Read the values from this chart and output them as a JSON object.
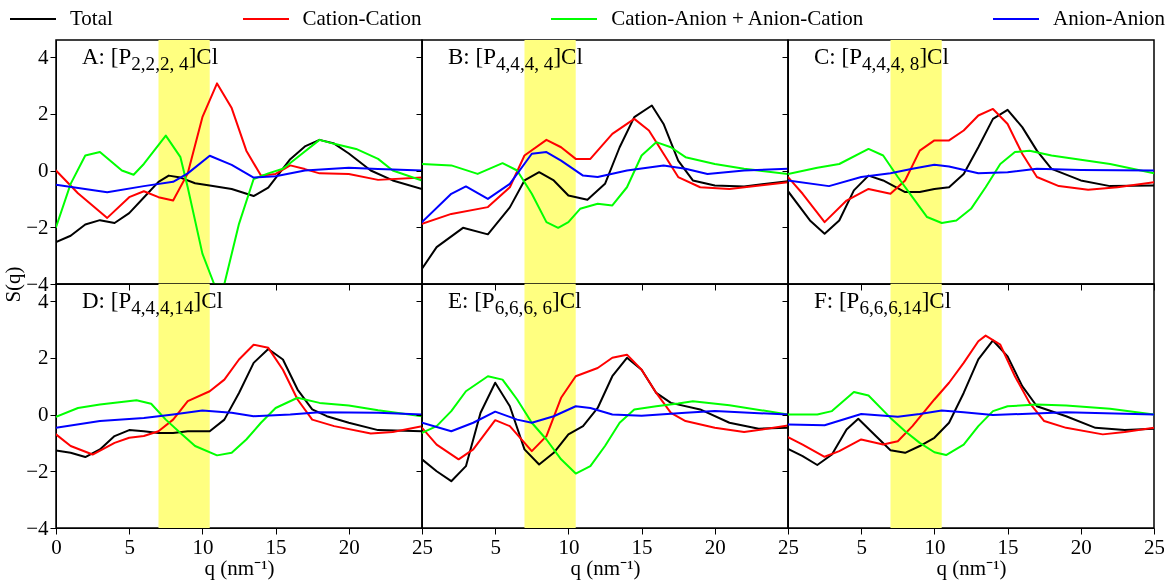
{
  "chart_data": [
    {
      "type": "line",
      "title": "A: [P$_{2,2,2, 4}$]Cl",
      "ylabel": "S(q)",
      "legend": "top",
      "tick_labels": "y",
      "xlim": [
        0,
        25
      ],
      "ylim": [
        -4,
        4.6
      ],
      "xticks": [
        0,
        5,
        10,
        15,
        20,
        25
      ],
      "yticks": [
        -4,
        -2,
        0,
        2,
        4
      ],
      "bands": [
        {
          "axis": "x",
          "from": 7,
          "to": 10.5,
          "color": "#ffff80"
        }
      ],
      "series": [
        {
          "name": "Total",
          "color": "#000000",
          "x": [
            0,
            1,
            2,
            3,
            4,
            5,
            6,
            7,
            7.7,
            8.5,
            9.5,
            10.5,
            12,
            13.5,
            14.5,
            16,
            17,
            18,
            19,
            20,
            21.5,
            23,
            25
          ],
          "values": [
            -2.52,
            -2.3,
            -1.9,
            -1.75,
            -1.85,
            -1.5,
            -0.95,
            -0.4,
            -0.18,
            -0.25,
            -0.45,
            -0.53,
            -0.65,
            -0.9,
            -0.6,
            0.4,
            0.85,
            1.08,
            0.95,
            0.6,
            0,
            -0.35,
            -0.65
          ]
        },
        {
          "name": "Cation-Cation",
          "color": "#ff0000",
          "x": [
            0,
            1.5,
            3.5,
            5,
            6,
            7,
            8,
            9,
            10,
            11,
            12,
            13,
            14,
            15,
            16,
            17,
            18,
            20,
            22,
            25
          ],
          "values": [
            0,
            -0.8,
            -1.67,
            -0.94,
            -0.73,
            -0.94,
            -1.06,
            -0.1,
            1.88,
            3.07,
            2.2,
            0.7,
            -0.18,
            -0.12,
            0.18,
            0.05,
            -0.1,
            -0.12,
            -0.33,
            -0.25
          ]
        },
        {
          "name": "Cation-Anion + Anion-Cation",
          "color": "#00ff00",
          "x": [
            0,
            1,
            2,
            3,
            4.5,
            5.3,
            6,
            7.5,
            8.5,
            9,
            10,
            10.8,
            11.5,
            12.5,
            13.5,
            14.5,
            15.5,
            16.5,
            18,
            19,
            20.5,
            22,
            23,
            25
          ],
          "values": [
            -2,
            -0.47,
            0.53,
            0.65,
            0,
            -0.15,
            0.23,
            1.23,
            0.47,
            -0.6,
            -2.93,
            -4,
            -4,
            -1.88,
            -0.3,
            -0.1,
            0.06,
            0.47,
            1.08,
            0.94,
            0.76,
            0.41,
            0,
            -0.35
          ]
        },
        {
          "name": "Anion-Anion",
          "color": "#0000ff",
          "x": [
            0,
            3.5,
            6,
            8,
            9,
            10.5,
            12,
            13.5,
            15,
            17,
            20,
            22,
            25
          ],
          "values": [
            -0.5,
            -0.77,
            -0.55,
            -0.4,
            -0.1,
            0.52,
            0.2,
            -0.25,
            -0.2,
            0,
            0.1,
            0.05,
            0
          ]
        }
      ]
    },
    {
      "type": "line",
      "title": "B: [P$_{4,4,4, 4}$]Cl",
      "tick_labels": false,
      "xlim": [
        0,
        25
      ],
      "ylim": [
        -4,
        4.6
      ],
      "xticks": [
        0,
        5,
        10,
        15,
        20,
        25
      ],
      "yticks": [
        -4,
        -2,
        0,
        2,
        4
      ],
      "bands": [
        {
          "axis": "x",
          "from": 7,
          "to": 10.5,
          "color": "#ffff80"
        }
      ],
      "series": [
        {
          "name": "Total",
          "color": "#000000",
          "x": [
            0,
            1,
            2.8,
            4.5,
            6,
            7,
            8,
            9,
            10,
            11.3,
            12.5,
            13.5,
            14.5,
            15.7,
            16.5,
            17.5,
            18.5,
            20,
            22,
            25
          ],
          "values": [
            -3.46,
            -2.7,
            -2.02,
            -2.25,
            -1.3,
            -0.35,
            -0.06,
            -0.35,
            -0.88,
            -1.03,
            -0.47,
            0.82,
            1.88,
            2.29,
            1.64,
            0.35,
            -0.35,
            -0.53,
            -0.56,
            -0.38
          ]
        },
        {
          "name": "Cation-Cation",
          "color": "#ff0000",
          "x": [
            0,
            2,
            4.5,
            6,
            7,
            8.5,
            9.5,
            10.5,
            11.5,
            13,
            14.5,
            15.5,
            16.5,
            17.5,
            19,
            21,
            25
          ],
          "values": [
            -1.88,
            -1.53,
            -1.29,
            -0.59,
            0.53,
            1.08,
            0.82,
            0.41,
            0.41,
            1.29,
            1.82,
            1.41,
            0.59,
            -0.23,
            -0.59,
            -0.65,
            -0.41
          ]
        },
        {
          "name": "Cation-Anion + Anion-Cation",
          "color": "#00ff00",
          "x": [
            0,
            2,
            3.8,
            5.5,
            6.5,
            7.5,
            8.5,
            9.3,
            10,
            10.8,
            12,
            13,
            14,
            15,
            16,
            17,
            18,
            20,
            22,
            25
          ],
          "values": [
            0.23,
            0.18,
            -0.12,
            0.26,
            0,
            -0.82,
            -1.82,
            -2.02,
            -1.82,
            -1.35,
            -1.17,
            -1.23,
            -0.59,
            0.53,
            1,
            0.82,
            0.47,
            0.23,
            0.06,
            -0.12
          ]
        },
        {
          "name": "Anion-Anion",
          "color": "#0000ff",
          "x": [
            0,
            2,
            3,
            4.5,
            6,
            7.5,
            8.5,
            9.5,
            11,
            12,
            14,
            16.5,
            18,
            19.5,
            22,
            25
          ],
          "values": [
            -1.82,
            -0.82,
            -0.56,
            -1,
            -0.47,
            0.59,
            0.65,
            0.35,
            -0.18,
            -0.23,
            0,
            0.18,
            0.06,
            -0.12,
            0,
            0.06
          ]
        }
      ]
    },
    {
      "type": "line",
      "title": "C: [P$_{4,4,4, 8}$]Cl",
      "tick_labels": false,
      "xlim": [
        0,
        25
      ],
      "ylim": [
        -4,
        4.6
      ],
      "xticks": [
        0,
        5,
        10,
        15,
        20,
        25
      ],
      "yticks": [
        -4,
        -2,
        0,
        2,
        4
      ],
      "bands": [
        {
          "axis": "x",
          "from": 7,
          "to": 10.5,
          "color": "#ffff80"
        }
      ],
      "series": [
        {
          "name": "Total",
          "color": "#000000",
          "x": [
            0,
            1.5,
            2.5,
            3.5,
            4.5,
            5.5,
            6.5,
            8,
            9,
            10,
            11,
            12,
            13,
            14,
            15,
            16,
            17,
            18,
            20,
            22,
            25
          ],
          "values": [
            -0.73,
            -1.76,
            -2.23,
            -1.76,
            -0.7,
            -0.18,
            -0.35,
            -0.76,
            -0.76,
            -0.65,
            -0.59,
            -0.12,
            0.82,
            1.82,
            2.14,
            1.53,
            0.7,
            0.06,
            -0.35,
            -0.55,
            -0.53
          ]
        },
        {
          "name": "Cation-Cation",
          "color": "#ff0000",
          "x": [
            0,
            1,
            2.5,
            4,
            5.5,
            7,
            8,
            9,
            10,
            11,
            12,
            13,
            14,
            15,
            16,
            17,
            18.5,
            20.5,
            22.5,
            25
          ],
          "values": [
            -0.23,
            -0.82,
            -1.82,
            -1.06,
            -0.65,
            -0.82,
            -0.35,
            0.7,
            1.06,
            1.06,
            1.41,
            1.94,
            2.17,
            1.64,
            0.59,
            -0.23,
            -0.55,
            -0.68,
            -0.59,
            -0.41
          ]
        },
        {
          "name": "Cation-Anion + Anion-Cation",
          "color": "#00ff00",
          "x": [
            0,
            2,
            3.5,
            5.5,
            6.5,
            7.5,
            8.5,
            9.5,
            10.5,
            11.5,
            12.5,
            13.5,
            14.5,
            15.5,
            16.5,
            18,
            20,
            22,
            25
          ],
          "values": [
            -0.12,
            0.1,
            0.23,
            0.76,
            0.53,
            -0.23,
            -0.94,
            -1.64,
            -1.85,
            -1.76,
            -1.35,
            -0.59,
            0.23,
            0.65,
            0.7,
            0.53,
            0.38,
            0.23,
            -0.1
          ]
        },
        {
          "name": "Anion-Anion",
          "color": "#0000ff",
          "x": [
            0,
            2.8,
            5,
            7,
            8.5,
            10,
            11,
            13,
            15,
            17,
            20,
            25
          ],
          "values": [
            -0.35,
            -0.55,
            -0.23,
            -0.1,
            0.06,
            0.2,
            0.14,
            -0.1,
            -0.06,
            0.06,
            0.02,
            0
          ]
        }
      ]
    },
    {
      "type": "line",
      "title": "D: [P$_{4,4,4,14}$]Cl",
      "xlabel": "q (nm⁻¹)",
      "xlim": [
        0,
        25
      ],
      "ylim": [
        -4,
        4.6
      ],
      "xticks": [
        0,
        5,
        10,
        15,
        20,
        25
      ],
      "yticks": [
        -4,
        -2,
        0,
        2,
        4
      ],
      "bands": [
        {
          "axis": "x",
          "from": 7,
          "to": 10.5,
          "color": "#ffff80"
        }
      ],
      "series": [
        {
          "name": "Total",
          "color": "#000000",
          "x": [
            0,
            1,
            2,
            3,
            4,
            5,
            6,
            7,
            8,
            9,
            10.5,
            11.5,
            12.5,
            13.5,
            14.5,
            15.5,
            16.5,
            17.5,
            18.5,
            20,
            22,
            25
          ],
          "values": [
            -1.27,
            -1.35,
            -1.5,
            -1.23,
            -0.76,
            -0.55,
            -0.59,
            -0.65,
            -0.65,
            -0.59,
            -0.59,
            -0.18,
            0.76,
            1.82,
            2.31,
            1.94,
            0.88,
            0.18,
            -0.06,
            -0.29,
            -0.55,
            -0.59
          ]
        },
        {
          "name": "Cation-Cation",
          "color": "#ff0000",
          "x": [
            0,
            1,
            2.5,
            4,
            5,
            6,
            7,
            8,
            9,
            10.5,
            11.5,
            12.5,
            13.5,
            14.5,
            15.5,
            16.5,
            17.5,
            19,
            21.5,
            23,
            25
          ],
          "values": [
            -0.7,
            -1.11,
            -1.41,
            -1,
            -0.82,
            -0.76,
            -0.59,
            -0.18,
            0.47,
            0.82,
            1.23,
            1.94,
            2.46,
            2.35,
            1.58,
            0.53,
            -0.18,
            -0.41,
            -0.67,
            -0.62,
            -0.41
          ]
        },
        {
          "name": "Cation-Anion + Anion-Cation",
          "color": "#00ff00",
          "x": [
            0,
            1.5,
            3,
            5.5,
            6.5,
            7.5,
            8.5,
            9.5,
            11,
            12,
            13,
            14,
            15,
            16.5,
            18,
            20,
            22,
            25
          ],
          "values": [
            -0.08,
            0.23,
            0.35,
            0.5,
            0.38,
            -0.18,
            -0.65,
            -1.11,
            -1.44,
            -1.35,
            -0.88,
            -0.29,
            0.23,
            0.59,
            0.41,
            0.32,
            0.15,
            -0.06
          ]
        },
        {
          "name": "Anion-Anion",
          "color": "#0000ff",
          "x": [
            0,
            3,
            6,
            8,
            10,
            12,
            13.5,
            16,
            18,
            22,
            25
          ],
          "values": [
            -0.47,
            -0.23,
            -0.12,
            0,
            0.14,
            0.06,
            -0.06,
            0,
            0.08,
            0.06,
            0
          ]
        }
      ]
    },
    {
      "type": "line",
      "title": "E: [P$_{6,6,6, 6}$]Cl",
      "xlabel": "q (nm⁻¹)",
      "tick_labels": "x",
      "xlim": [
        0,
        25
      ],
      "ylim": [
        -4,
        4.6
      ],
      "xticks": [
        5,
        10,
        15,
        20,
        25
      ],
      "yticks": [
        -4,
        -2,
        0,
        2,
        4
      ],
      "bands": [
        {
          "axis": "x",
          "from": 7,
          "to": 10.5,
          "color": "#ffff80"
        }
      ],
      "series": [
        {
          "name": "Total",
          "color": "#000000",
          "x": [
            0,
            1,
            2,
            3,
            4,
            5,
            6,
            7,
            8,
            9,
            10,
            11,
            12,
            13,
            14,
            15,
            16,
            17,
            19,
            21,
            23,
            25
          ],
          "values": [
            -1.58,
            -2,
            -2.35,
            -1.82,
            0.06,
            1.12,
            0.29,
            -1.23,
            -1.76,
            -1.35,
            -0.7,
            -0.41,
            0.23,
            1.35,
            2,
            1.58,
            0.76,
            0.41,
            0.18,
            -0.29,
            -0.5,
            -0.47
          ]
        },
        {
          "name": "Cation-Cation",
          "color": "#ff0000",
          "x": [
            0,
            1,
            2.5,
            3.5,
            5,
            6,
            7.5,
            8.5,
            9.5,
            10.5,
            12,
            13,
            14,
            15,
            16,
            17,
            18,
            20,
            22,
            25
          ],
          "values": [
            -0.47,
            -1.06,
            -1.58,
            -1.23,
            -0.2,
            -0.41,
            -1.29,
            -0.76,
            0.59,
            1.35,
            1.64,
            2,
            2.11,
            1.58,
            0.76,
            0.06,
            -0.23,
            -0.47,
            -0.62,
            -0.39
          ]
        },
        {
          "name": "Cation-Anion + Anion-Cation",
          "color": "#00ff00",
          "x": [
            0,
            1,
            2,
            3,
            4.5,
            5.5,
            6.5,
            7.5,
            8.5,
            9.5,
            10.5,
            11.5,
            12.5,
            13.5,
            14.5,
            16,
            17.5,
            18.5,
            21,
            25
          ],
          "values": [
            -0.65,
            -0.41,
            0.12,
            0.82,
            1.35,
            1.23,
            0.53,
            -0.29,
            -0.88,
            -1.58,
            -2.08,
            -1.82,
            -1.11,
            -0.29,
            0.18,
            0.29,
            0.39,
            0.47,
            0.33,
            0
          ]
        },
        {
          "name": "Anion-Anion",
          "color": "#0000ff",
          "x": [
            0,
            2,
            3.5,
            5,
            6.5,
            7.5,
            9,
            10.5,
            11.5,
            13,
            15,
            18,
            20,
            25
          ],
          "values": [
            -0.29,
            -0.59,
            -0.29,
            0.1,
            -0.18,
            -0.29,
            -0.06,
            0.29,
            0.23,
            0,
            -0.04,
            0.06,
            0.12,
            0
          ]
        }
      ]
    },
    {
      "type": "line",
      "title": "F: [P$_{6,6,6,14}$]Cl",
      "xlabel": "q (nm⁻¹)",
      "tick_labels": "x",
      "xlim": [
        0,
        25
      ],
      "ylim": [
        -4,
        4.6
      ],
      "xticks": [
        5,
        10,
        15,
        20,
        25
      ],
      "yticks": [
        -4,
        -2,
        0,
        2,
        4
      ],
      "bands": [
        {
          "axis": "x",
          "from": 7,
          "to": 10.5,
          "color": "#ffff80"
        }
      ],
      "series": [
        {
          "name": "Total",
          "color": "#000000",
          "x": [
            0,
            1,
            2,
            3,
            4,
            4.8,
            6,
            7,
            8,
            9,
            10,
            11,
            12,
            13,
            14,
            15,
            16,
            17,
            19,
            21,
            23,
            25
          ],
          "values": [
            -1.21,
            -1.47,
            -1.78,
            -1.41,
            -0.53,
            -0.15,
            -0.76,
            -1.26,
            -1.35,
            -1.11,
            -0.82,
            -0.29,
            0.76,
            1.94,
            2.61,
            2.05,
            1,
            0.29,
            -0.06,
            -0.47,
            -0.55,
            -0.5
          ]
        },
        {
          "name": "Cation-Cation",
          "color": "#ff0000",
          "x": [
            0,
            1,
            2.5,
            3.5,
            5,
            6.5,
            7.5,
            8.5,
            10,
            11,
            12,
            13,
            13.5,
            14.5,
            15.5,
            16.5,
            17.5,
            19,
            21.5,
            23,
            25
          ],
          "values": [
            -0.8,
            -1.06,
            -1.49,
            -1.29,
            -0.88,
            -1.06,
            -0.94,
            -0.41,
            0.53,
            1.12,
            1.82,
            2.58,
            2.78,
            2.46,
            1.35,
            0.41,
            -0.23,
            -0.47,
            -0.7,
            -0.62,
            -0.47
          ]
        },
        {
          "name": "Cation-Anion + Anion-Cation",
          "color": "#00ff00",
          "x": [
            0,
            2,
            3,
            4.5,
            5.5,
            7,
            8,
            9,
            10,
            10.8,
            12,
            13,
            14,
            15,
            17,
            19,
            22,
            25
          ],
          "values": [
            0,
            0,
            0.12,
            0.79,
            0.67,
            -0.12,
            -0.59,
            -1,
            -1.33,
            -1.43,
            -1.06,
            -0.41,
            0.12,
            0.29,
            0.35,
            0.32,
            0.2,
            0
          ]
        },
        {
          "name": "Anion-Anion",
          "color": "#0000ff",
          "x": [
            0,
            2.5,
            5,
            7.5,
            9,
            10.5,
            12,
            14,
            16,
            19,
            25
          ],
          "values": [
            -0.35,
            -0.38,
            0.02,
            -0.08,
            0.02,
            0.14,
            0.08,
            -0.02,
            0.02,
            0.08,
            0
          ]
        }
      ]
    }
  ]
}
